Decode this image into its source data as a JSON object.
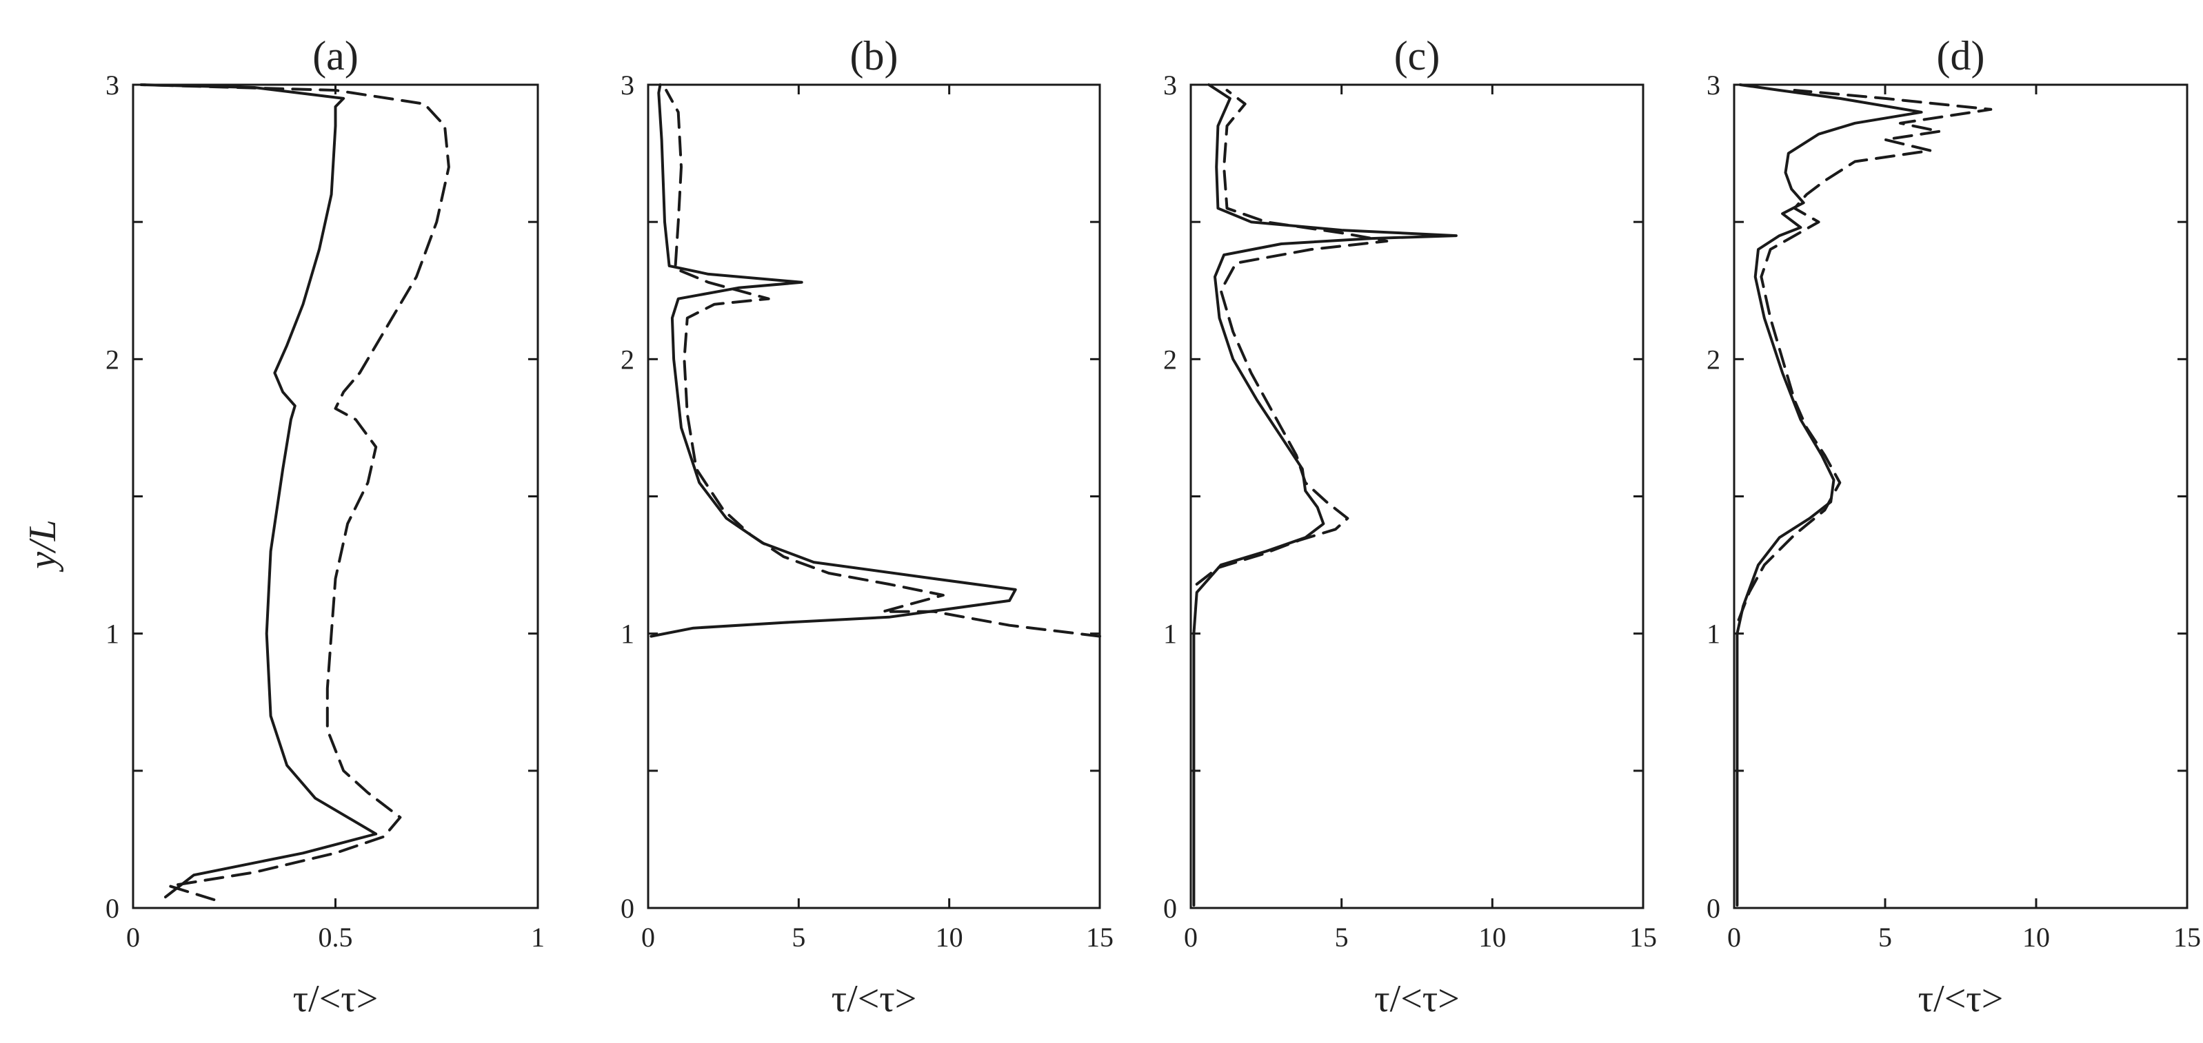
{
  "figure": {
    "ylabel": "y/L",
    "colors": {
      "ink": "#1a1a1a",
      "background": "#ffffff"
    }
  },
  "chart_data": [
    {
      "type": "line",
      "title": "(a)",
      "xlabel": "τ/<τ>",
      "ylabel": "y/L",
      "xlim": [
        0,
        1
      ],
      "ylim": [
        0,
        3
      ],
      "xticks": [
        0,
        0.5,
        1
      ],
      "yticks": [
        0,
        1,
        2,
        3
      ],
      "xtick_labels": [
        "0",
        "0.5",
        "1"
      ],
      "ytick_labels": [
        "0",
        "1",
        "2",
        "3"
      ],
      "grid": false,
      "series": [
        {
          "style": "solid",
          "points": [
            [
              0.08,
              0.04
            ],
            [
              0.15,
              0.12
            ],
            [
              0.42,
              0.2
            ],
            [
              0.6,
              0.27
            ],
            [
              0.45,
              0.4
            ],
            [
              0.38,
              0.52
            ],
            [
              0.34,
              0.7
            ],
            [
              0.33,
              1.0
            ],
            [
              0.34,
              1.3
            ],
            [
              0.37,
              1.6
            ],
            [
              0.39,
              1.78
            ],
            [
              0.4,
              1.83
            ],
            [
              0.37,
              1.88
            ],
            [
              0.35,
              1.95
            ],
            [
              0.38,
              2.05
            ],
            [
              0.42,
              2.2
            ],
            [
              0.46,
              2.4
            ],
            [
              0.49,
              2.6
            ],
            [
              0.5,
              2.85
            ],
            [
              0.5,
              2.92
            ],
            [
              0.52,
              2.95
            ],
            [
              0.3,
              2.99
            ],
            [
              0.02,
              3.0
            ]
          ]
        },
        {
          "style": "dashed",
          "points": [
            [
              0.2,
              0.03
            ],
            [
              0.09,
              0.08
            ],
            [
              0.3,
              0.13
            ],
            [
              0.5,
              0.2
            ],
            [
              0.62,
              0.26
            ],
            [
              0.66,
              0.33
            ],
            [
              0.58,
              0.42
            ],
            [
              0.52,
              0.5
            ],
            [
              0.48,
              0.65
            ],
            [
              0.48,
              0.8
            ],
            [
              0.49,
              1.0
            ],
            [
              0.5,
              1.2
            ],
            [
              0.53,
              1.4
            ],
            [
              0.58,
              1.55
            ],
            [
              0.6,
              1.68
            ],
            [
              0.55,
              1.78
            ],
            [
              0.5,
              1.82
            ],
            [
              0.52,
              1.88
            ],
            [
              0.56,
              1.95
            ],
            [
              0.62,
              2.1
            ],
            [
              0.7,
              2.3
            ],
            [
              0.75,
              2.5
            ],
            [
              0.78,
              2.7
            ],
            [
              0.77,
              2.85
            ],
            [
              0.72,
              2.93
            ],
            [
              0.5,
              2.98
            ],
            [
              0.02,
              3.0
            ]
          ]
        }
      ]
    },
    {
      "type": "line",
      "title": "(b)",
      "xlabel": "τ/<τ>",
      "xlim": [
        0,
        15
      ],
      "ylim": [
        0,
        3
      ],
      "xticks": [
        0,
        5,
        10,
        15
      ],
      "yticks": [
        0,
        1,
        2,
        3
      ],
      "xtick_labels": [
        "0",
        "5",
        "10",
        "15"
      ],
      "ytick_labels": [
        "0",
        "1",
        "2",
        "3"
      ],
      "grid": false,
      "series": [
        {
          "style": "solid",
          "points": [
            [
              0.1,
              0.99
            ],
            [
              1.5,
              1.02
            ],
            [
              4.5,
              1.04
            ],
            [
              8.0,
              1.06
            ],
            [
              12.0,
              1.12
            ],
            [
              12.2,
              1.16
            ],
            [
              9.5,
              1.2
            ],
            [
              5.5,
              1.26
            ],
            [
              3.8,
              1.33
            ],
            [
              2.6,
              1.42
            ],
            [
              1.7,
              1.55
            ],
            [
              1.1,
              1.75
            ],
            [
              0.85,
              2.0
            ],
            [
              0.8,
              2.15
            ],
            [
              1.0,
              2.22
            ],
            [
              3.0,
              2.26
            ],
            [
              5.1,
              2.28
            ],
            [
              2.0,
              2.31
            ],
            [
              0.7,
              2.34
            ],
            [
              0.55,
              2.5
            ],
            [
              0.45,
              2.8
            ],
            [
              0.35,
              2.97
            ],
            [
              0.4,
              3.0
            ]
          ]
        },
        {
          "style": "dashed",
          "points": [
            [
              15.0,
              0.99
            ],
            [
              12.0,
              1.03
            ],
            [
              10.5,
              1.06
            ],
            [
              9.5,
              1.08
            ],
            [
              7.8,
              1.08
            ],
            [
              9.8,
              1.14
            ],
            [
              8.0,
              1.18
            ],
            [
              6.0,
              1.22
            ],
            [
              4.5,
              1.28
            ],
            [
              3.4,
              1.36
            ],
            [
              2.5,
              1.45
            ],
            [
              1.6,
              1.6
            ],
            [
              1.3,
              1.8
            ],
            [
              1.2,
              2.0
            ],
            [
              1.3,
              2.15
            ],
            [
              2.2,
              2.2
            ],
            [
              4.0,
              2.22
            ],
            [
              2.0,
              2.28
            ],
            [
              0.9,
              2.33
            ],
            [
              1.0,
              2.5
            ],
            [
              1.1,
              2.7
            ],
            [
              1.0,
              2.9
            ],
            [
              0.6,
              2.98
            ]
          ]
        }
      ]
    },
    {
      "type": "line",
      "title": "(c)",
      "xlabel": "τ/<τ>",
      "xlim": [
        0,
        15
      ],
      "ylim": [
        0,
        3
      ],
      "xticks": [
        0,
        5,
        10,
        15
      ],
      "yticks": [
        0,
        1,
        2,
        3
      ],
      "xtick_labels": [
        "0",
        "5",
        "10",
        "15"
      ],
      "ytick_labels": [
        "0",
        "1",
        "2",
        "3"
      ],
      "grid": false,
      "series": [
        {
          "style": "solid",
          "points": [
            [
              0.1,
              0.01
            ],
            [
              0.1,
              0.5
            ],
            [
              0.1,
              1.0
            ],
            [
              0.2,
              1.15
            ],
            [
              1.0,
              1.25
            ],
            [
              2.5,
              1.3
            ],
            [
              3.8,
              1.35
            ],
            [
              4.4,
              1.4
            ],
            [
              4.2,
              1.46
            ],
            [
              3.8,
              1.52
            ],
            [
              3.7,
              1.6
            ],
            [
              3.1,
              1.7
            ],
            [
              2.2,
              1.85
            ],
            [
              1.4,
              2.0
            ],
            [
              0.95,
              2.15
            ],
            [
              0.8,
              2.3
            ],
            [
              1.1,
              2.38
            ],
            [
              3.0,
              2.42
            ],
            [
              6.0,
              2.44
            ],
            [
              8.8,
              2.45
            ],
            [
              5.0,
              2.47
            ],
            [
              2.0,
              2.5
            ],
            [
              0.9,
              2.55
            ],
            [
              0.85,
              2.7
            ],
            [
              0.9,
              2.85
            ],
            [
              1.3,
              2.95
            ],
            [
              0.6,
              3.0
            ]
          ]
        },
        {
          "style": "dashed",
          "points": [
            [
              0.2,
              1.18
            ],
            [
              0.9,
              1.24
            ],
            [
              2.4,
              1.29
            ],
            [
              3.6,
              1.34
            ],
            [
              4.8,
              1.38
            ],
            [
              5.2,
              1.42
            ],
            [
              4.5,
              1.48
            ],
            [
              3.8,
              1.55
            ],
            [
              3.5,
              1.65
            ],
            [
              3.0,
              1.75
            ],
            [
              2.5,
              1.85
            ],
            [
              2.0,
              1.95
            ],
            [
              1.4,
              2.1
            ],
            [
              1.0,
              2.25
            ],
            [
              1.5,
              2.35
            ],
            [
              4.0,
              2.4
            ],
            [
              6.5,
              2.43
            ],
            [
              5.0,
              2.46
            ],
            [
              2.5,
              2.5
            ],
            [
              1.2,
              2.55
            ],
            [
              1.1,
              2.7
            ],
            [
              1.2,
              2.85
            ],
            [
              1.8,
              2.93
            ],
            [
              1.2,
              2.98
            ]
          ]
        }
      ]
    },
    {
      "type": "line",
      "title": "(d)",
      "xlabel": "τ/<τ>",
      "xlim": [
        0,
        15
      ],
      "ylim": [
        0,
        3
      ],
      "xticks": [
        0,
        5,
        10,
        15
      ],
      "yticks": [
        0,
        1,
        2,
        3
      ],
      "xtick_labels": [
        "0",
        "5",
        "10",
        "15"
      ],
      "ytick_labels": [
        "0",
        "1",
        "2",
        "3"
      ],
      "grid": false,
      "series": [
        {
          "style": "solid",
          "points": [
            [
              0.1,
              0.01
            ],
            [
              0.1,
              0.6
            ],
            [
              0.1,
              1.0
            ],
            [
              0.3,
              1.1
            ],
            [
              0.8,
              1.25
            ],
            [
              1.5,
              1.35
            ],
            [
              2.5,
              1.42
            ],
            [
              3.2,
              1.48
            ],
            [
              3.3,
              1.56
            ],
            [
              2.9,
              1.65
            ],
            [
              2.2,
              1.78
            ],
            [
              1.6,
              1.95
            ],
            [
              1.0,
              2.15
            ],
            [
              0.7,
              2.3
            ],
            [
              0.8,
              2.4
            ],
            [
              1.5,
              2.45
            ],
            [
              2.2,
              2.48
            ],
            [
              1.6,
              2.53
            ],
            [
              2.3,
              2.57
            ],
            [
              1.9,
              2.62
            ],
            [
              1.7,
              2.68
            ],
            [
              1.8,
              2.75
            ],
            [
              2.8,
              2.82
            ],
            [
              4.0,
              2.86
            ],
            [
              6.2,
              2.9
            ],
            [
              3.5,
              2.95
            ],
            [
              1.5,
              2.98
            ],
            [
              0.2,
              3.0
            ]
          ]
        },
        {
          "style": "dashed",
          "points": [
            [
              0.15,
              1.05
            ],
            [
              0.5,
              1.15
            ],
            [
              1.0,
              1.25
            ],
            [
              2.0,
              1.36
            ],
            [
              3.0,
              1.45
            ],
            [
              3.5,
              1.55
            ],
            [
              3.0,
              1.65
            ],
            [
              2.4,
              1.75
            ],
            [
              2.0,
              1.85
            ],
            [
              1.6,
              2.0
            ],
            [
              1.2,
              2.15
            ],
            [
              0.9,
              2.3
            ],
            [
              1.2,
              2.4
            ],
            [
              2.0,
              2.45
            ],
            [
              2.8,
              2.5
            ],
            [
              2.0,
              2.55
            ],
            [
              2.4,
              2.6
            ],
            [
              3.0,
              2.65
            ],
            [
              4.0,
              2.72
            ],
            [
              6.5,
              2.76
            ],
            [
              5.0,
              2.8
            ],
            [
              6.8,
              2.83
            ],
            [
              5.5,
              2.86
            ],
            [
              8.5,
              2.91
            ],
            [
              5.0,
              2.95
            ],
            [
              2.0,
              2.98
            ]
          ]
        }
      ]
    }
  ]
}
